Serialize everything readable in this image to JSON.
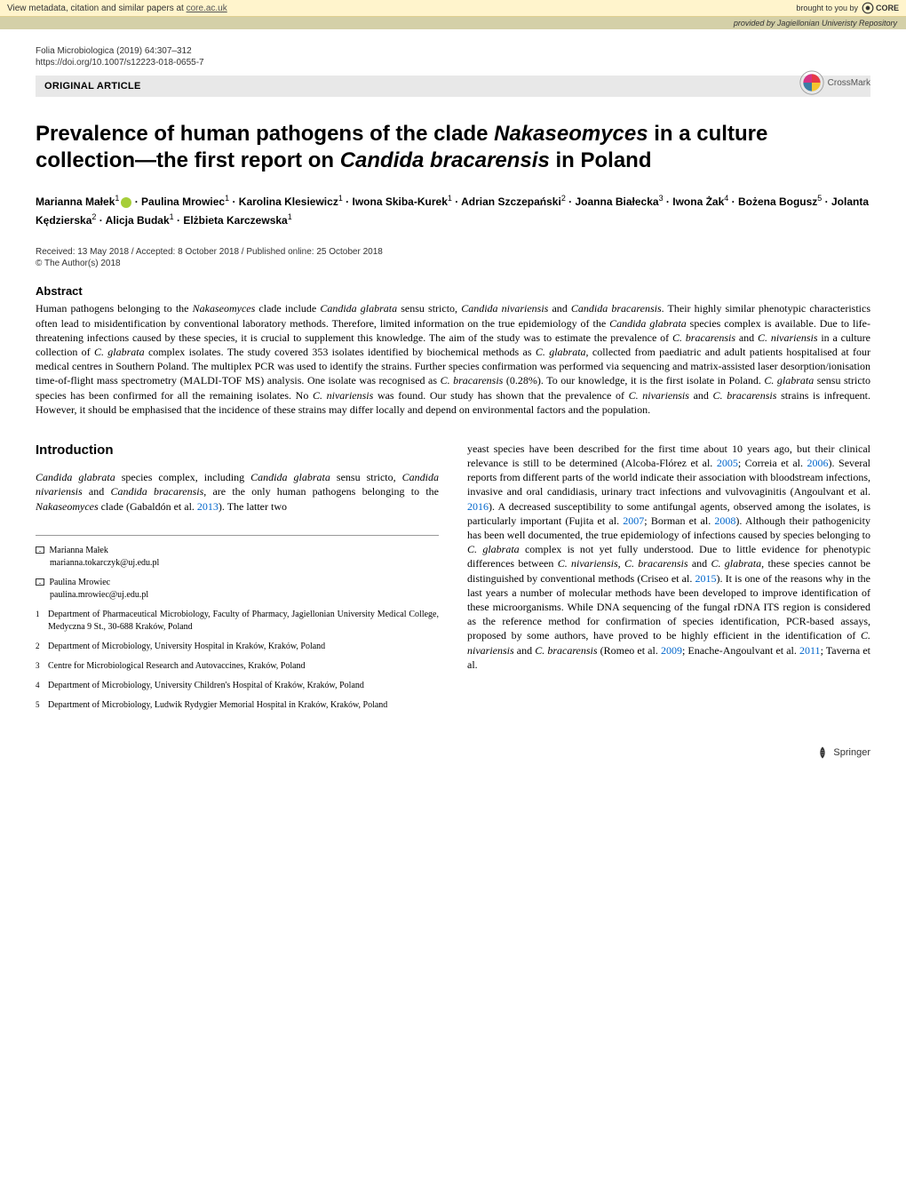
{
  "core_banner": {
    "left_text": "View metadata, citation and similar papers at ",
    "left_link": "core.ac.uk",
    "right_text": "brought to you by",
    "logo": "CORE"
  },
  "repo_banner": {
    "text": "provided by Jagiellonian Univeristy Repository"
  },
  "journal": {
    "citation": "Folia Microbiologica (2019) 64:307–312",
    "doi": "https://doi.org/10.1007/s12223-018-0655-7"
  },
  "article_type": "ORIGINAL ARTICLE",
  "crossmark_label": "CrossMark",
  "title_html": "Prevalence of human pathogens of the clade <em>Nakaseomyces</em> in a culture collection—the first report on <em>Candida bracarensis</em> in Poland",
  "authors_html": "Marianna Małek<sup>1</sup><span class=\"orcid-icon\" data-name=\"orcid-icon\" data-interactable=\"false\"></span> · Paulina Mrowiec<sup>1</sup> · Karolina Klesiewicz<sup>1</sup> · Iwona Skiba-Kurek<sup>1</sup> · Adrian Szczepański<sup>2</sup> · Joanna Białecka<sup>3</sup> · Iwona Żak<sup>4</sup> · Bożena Bogusz<sup>5</sup> · Jolanta Kędzierska<sup>2</sup> · Alicja Budak<sup>1</sup> · Elżbieta Karczewska<sup>1</sup>",
  "dates": "Received: 13 May 2018 / Accepted: 8 October 2018 / Published online: 25 October 2018",
  "copyright": "© The Author(s) 2018",
  "abstract": {
    "heading": "Abstract",
    "text_html": "Human pathogens belonging to the <em>Nakaseomyces</em> clade include <em>Candida glabrata</em> sensu stricto, <em>Candida nivariensis</em> and <em>Candida bracarensis</em>. Their highly similar phenotypic characteristics often lead to misidentification by conventional laboratory methods. Therefore, limited information on the true epidemiology of the <em>Candida glabrata</em> species complex is available. Due to life-threatening infections caused by these species, it is crucial to supplement this knowledge. The aim of the study was to estimate the prevalence of <em>C. bracarensis</em> and <em>C. nivariensis</em> in a culture collection of <em>C. glabrata</em> complex isolates. The study covered 353 isolates identified by biochemical methods as <em>C. glabrata</em>, collected from paediatric and adult patients hospitalised at four medical centres in Southern Poland. The multiplex PCR was used to identify the strains. Further species confirmation was performed via sequencing and matrix-assisted laser desorption/ionisation time-of-flight mass spectrometry (MALDI-TOF MS) analysis. One isolate was recognised as <em>C. bracarensis</em> (0.28%). To our knowledge, it is the first isolate in Poland. <em>C. glabrata</em> sensu stricto species has been confirmed for all the remaining isolates. No <em>C. nivariensis</em> was found. Our study has shown that the prevalence of <em>C. nivariensis</em> and <em>C. bracarensis</em> strains is infrequent. However, it should be emphasised that the incidence of these strains may differ locally and depend on environmental factors and the population."
  },
  "introduction": {
    "heading": "Introduction",
    "col1_html": "<em>Candida glabrata</em> species complex, including <em>Candida glabrata</em> sensu stricto, <em>Candida nivariensis</em> and <em>Candida bracarensis</em>, are the only human pathogens belonging to the <em>Nakaseomyces</em> clade (Gabaldón et al. <span class=\"ref-link\">2013</span>). The latter two",
    "col2_html": "yeast species have been described for the first time about 10 years ago, but their clinical relevance is still to be determined (Alcoba-Flórez et al. <span class=\"ref-link\">2005</span>; Correia et al. <span class=\"ref-link\">2006</span>). Several reports from different parts of the world indicate their association with bloodstream infections, invasive and oral candidiasis, urinary tract infections and vulvovaginitis (Angoulvant et al. <span class=\"ref-link\">2016</span>). A decreased susceptibility to some antifungal agents, observed among the isolates, is particularly important (Fujita et al. <span class=\"ref-link\">2007</span>; Borman et al. <span class=\"ref-link\">2008</span>). Although their pathogenicity has been well documented, the true epidemiology of infections caused by species belonging to <em>C. glabrata</em> complex is not yet fully understood. Due to little evidence for phenotypic differences between <em>C. nivariensis</em>, <em>C. bracarensis</em> and <em>C. glabrata</em>, these species cannot be distinguished by conventional methods (Criseo et al. <span class=\"ref-link\">2015</span>). It is one of the reasons why in the last years a number of molecular methods have been developed to improve identification of these microorganisms. While DNA sequencing of the fungal rDNA ITS region is considered as the reference method for confirmation of species identification, PCR-based assays, proposed by some authors, have proved to be highly efficient in the identification of <em>C. nivariensis</em> and <em>C. bracarensis</em> (Romeo et al. <span class=\"ref-link\">2009</span>; Enache-Angoulvant et al. <span class=\"ref-link\">2011</span>; Taverna et al."
  },
  "correspondence": [
    {
      "name": "Marianna Małek",
      "email": "marianna.tokarczyk@uj.edu.pl"
    },
    {
      "name": "Paulina Mrowiec",
      "email": "paulina.mrowiec@uj.edu.pl"
    }
  ],
  "affiliations": [
    {
      "num": "1",
      "text": "Department of Pharmaceutical Microbiology, Faculty of Pharmacy, Jagiellonian University Medical College, Medyczna 9 St., 30-688 Kraków, Poland"
    },
    {
      "num": "2",
      "text": "Department of Microbiology, University Hospital in Kraków, Kraków, Poland"
    },
    {
      "num": "3",
      "text": "Centre for Microbiological Research and Autovaccines, Kraków, Poland"
    },
    {
      "num": "4",
      "text": "Department of Microbiology, University Children's Hospital of Kraków, Kraków, Poland"
    },
    {
      "num": "5",
      "text": "Department of Microbiology, Ludwik Rydygier Memorial Hospital in Kraków, Kraków, Poland"
    }
  ],
  "springer": "Springer",
  "colors": {
    "core_bg": "#fff4cc",
    "repo_bg": "#d4d0a8",
    "article_type_bg": "#e8e8e8",
    "ref_link": "#0066cc",
    "orcid": "#a6ce39"
  }
}
